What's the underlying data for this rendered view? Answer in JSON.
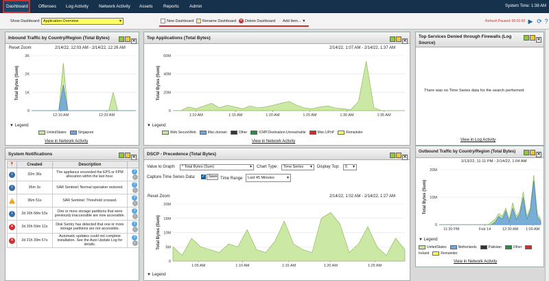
{
  "nav": {
    "tabs": [
      "Dashboard",
      "Offenses",
      "Log Activity",
      "Network Activity",
      "Assets",
      "Reports",
      "Admin"
    ],
    "system_time": "System Time: 1:38 AM"
  },
  "toolbar": {
    "show_label": "Show Dashboard:",
    "dashboard_value": "Application Overview",
    "new": "New Dashboard",
    "rename": "Rename Dashboard",
    "delete": "Delete Dashboard",
    "add": "Add Item...",
    "refresh": "Refresh Paused: 00:01:00"
  },
  "colors": {
    "green": "#c6e59b",
    "blue": "#6fa7dc",
    "red": "#d32a2a",
    "nav": "#15314b",
    "yellow": "#ffff66"
  },
  "p_inbound": {
    "title": "Inbound Traffic by Country/Region (Total Bytes)",
    "reset": "Reset Zoom",
    "range": "2/14/22, 12:03 AM - 2/14/22, 12:26 AM",
    "ylabel": "Total Bytes (Sum)",
    "legend_label": "Legend",
    "link": "View in Network Activity"
  },
  "p_topapps": {
    "title": "Top Applications (Total Bytes)",
    "range": "2/14/22, 1:07 AM - 2/14/22, 1:37 AM",
    "ylabel": "Total Bytes (Sum)",
    "legend_label": "Legend",
    "link": "View in Network Activity"
  },
  "p_denied": {
    "title": "Top Services Denied through Firewalls (Log Source)",
    "message": "There was no Time Series data for the search performed",
    "link": "View in Log Activity"
  },
  "p_notif": {
    "title": "System Notifications",
    "cols": [
      "Created",
      "Description"
    ],
    "rows": [
      {
        "icon": "info",
        "created": "32m 36s",
        "desc": "The appliance exceeded the EPS or FPM allocation within the last hour."
      },
      {
        "icon": "info",
        "created": "36m 3s",
        "desc": "SAR Sentinel: Normal operation restored."
      },
      {
        "icon": "warn",
        "created": "36m 51s",
        "desc": "SAR Sentinel: Threshold crossed."
      },
      {
        "icon": "info",
        "created": "2d 20h 58m 53s",
        "desc": "One or more storage partitions that were previously inaccessible are now accessible."
      },
      {
        "icon": "error",
        "created": "2d 20h 59m 12s",
        "desc": "Disk Sentry has detected that one or more storage partitions are not accessible."
      },
      {
        "icon": "error",
        "created": "2d 21h 39m 57s",
        "desc": "Automatic updates could not complete installation. See the Auto Update Log for details."
      }
    ]
  },
  "p_dscp": {
    "title": "DSCP - Precedence (Total Bytes)",
    "value_label": "Value to Graph:",
    "value": "* Total Bytes (Sum)",
    "ctype_label": "Chart Type:",
    "ctype": "Time Series",
    "top_label": "Display Top:",
    "top": "5",
    "capture_label": "Capture Time Series Data:",
    "save": "Save",
    "trange_label": "Time Range",
    "trange": "Last 45 Minutes",
    "reset": "Reset Zoom",
    "range": "2/14/22, 1:02 AM - 2/14/22, 1:27 AM",
    "ylabel": "Total Bytes (Sum)",
    "legend_label": "Legend"
  },
  "p_outbound": {
    "title": "Outbound Traffic by Country/Region (Total Bytes)",
    "range": "2/13/22, 11:11 PM - 2/14/22, 1:04 AM",
    "ylabel": "Total Bytes (Sum)",
    "legend_label": "Legend",
    "link": "View in Network Activity"
  },
  "chart_data": [
    {
      "type": "area",
      "title": "Inbound Traffic by Country/Region (Total Bytes)",
      "ylabel": "Total Bytes (Sum)",
      "ylim": [
        0,
        3
      ],
      "yticks": [
        "0",
        "1K",
        "2K",
        "3K"
      ],
      "xticks": [
        "12:10 AM",
        "12:20 AM"
      ],
      "x": [
        0,
        1,
        2,
        3,
        4,
        5,
        6,
        7,
        8,
        9,
        10,
        11,
        12,
        13,
        14,
        15,
        16,
        17,
        18,
        19,
        20,
        21,
        22,
        23
      ],
      "series": [
        {
          "name": "UnitedStates",
          "color": "#c6e59b",
          "values": [
            0,
            0,
            0,
            0,
            0,
            0,
            0,
            2.6,
            0,
            0,
            0,
            0,
            0,
            0,
            0,
            0,
            0,
            0,
            1.0,
            0,
            0,
            0,
            0,
            0
          ]
        },
        {
          "name": "Singapore",
          "color": "#6fa7dc",
          "values": [
            0,
            0,
            0,
            0,
            0,
            0,
            0,
            1.4,
            0,
            0,
            0,
            0,
            0,
            0,
            0,
            0,
            0,
            0,
            0,
            0,
            0,
            0,
            0,
            0
          ]
        }
      ]
    },
    {
      "type": "area",
      "title": "Top Applications (Total Bytes)",
      "ylabel": "Total Bytes (Sum)",
      "ylim": [
        0,
        60
      ],
      "yticks": [
        "0",
        "20M",
        "40M",
        "60M"
      ],
      "xticks": [
        "1:10 AM",
        "1:15 AM",
        "1:20 AM",
        "1:25 AM",
        "1:30 AM",
        "1:35 AM"
      ],
      "x": [
        0,
        1,
        2,
        3,
        4,
        5,
        6,
        7,
        8,
        9,
        10,
        11,
        12,
        13,
        14,
        15,
        16,
        17,
        18,
        19,
        20,
        21,
        22,
        23,
        24,
        25,
        26,
        27,
        28,
        29,
        30
      ],
      "series": [
        {
          "name": "Web.SecureWeb",
          "color": "#c6e59b",
          "values": [
            0,
            0,
            4,
            2,
            5,
            8,
            3,
            6,
            4,
            2,
            5,
            3,
            4,
            6,
            8,
            10,
            6,
            3,
            2,
            4,
            5,
            3,
            2,
            1,
            10,
            54,
            3,
            0,
            0,
            0,
            0
          ]
        },
        {
          "name": "Misc.domain",
          "color": "#6fa7dc",
          "values": [
            0,
            0,
            0,
            0,
            0,
            0,
            0,
            0,
            0,
            0,
            0,
            0,
            0,
            0,
            0,
            0,
            0,
            0,
            0,
            0,
            0,
            0,
            0,
            0,
            0,
            0,
            0,
            0,
            0,
            0,
            0
          ]
        },
        {
          "name": "Other",
          "color": "#333333",
          "values": [
            0,
            0,
            0,
            0,
            0,
            0,
            0,
            0,
            0,
            0,
            0,
            0,
            0,
            0,
            0,
            0,
            0,
            0,
            0,
            0,
            0,
            0,
            0,
            0,
            0,
            0,
            0,
            0,
            0,
            0,
            0
          ]
        },
        {
          "name": "ICMP.Destination-Unreachable",
          "color": "#2a8a4a",
          "values": [
            0,
            0,
            0,
            0,
            0,
            0,
            0,
            0,
            0,
            0,
            0,
            0,
            0,
            0,
            0,
            0,
            0,
            0,
            0,
            0,
            0,
            0,
            0,
            0,
            0,
            0,
            0,
            0,
            0,
            0,
            0
          ]
        },
        {
          "name": "Misc.UPnP",
          "color": "#d32a2a",
          "values": [
            0,
            0,
            0,
            0,
            0,
            0,
            0,
            0,
            0,
            0,
            0,
            0,
            0,
            0,
            0,
            0,
            0,
            0,
            0,
            0,
            0,
            0,
            0,
            0,
            0,
            0,
            0,
            0,
            0,
            0,
            0
          ]
        },
        {
          "name": "Remainder",
          "color": "#ffff66",
          "values": [
            0,
            0,
            0,
            0,
            0,
            0,
            0,
            0,
            0,
            0,
            0,
            0,
            0,
            0,
            0,
            0,
            0,
            0,
            0,
            0,
            0,
            0,
            0,
            0,
            0,
            0,
            0,
            0,
            0,
            0,
            0
          ]
        }
      ]
    },
    {
      "type": "area",
      "title": "DSCP - Precedence (Total Bytes)",
      "ylabel": "Total Bytes (Sum)",
      "ylim": [
        0,
        20
      ],
      "yticks": [
        "0",
        "5M",
        "10M",
        "15M",
        "20M"
      ],
      "xticks": [
        "1:05 AM",
        "1:10 AM",
        "1:15 AM",
        "1:20 AM",
        "1:25 AM"
      ],
      "x": [
        0,
        1,
        2,
        3,
        4,
        5,
        6,
        7,
        8,
        9,
        10,
        11,
        12,
        13,
        14,
        15,
        16,
        17,
        18,
        19,
        20,
        21,
        22,
        23,
        24,
        25
      ],
      "series": [
        {
          "name": "",
          "color": "#c6e59b",
          "values": [
            5,
            2,
            8,
            5,
            4,
            3,
            6,
            5,
            11,
            4,
            3,
            7,
            14,
            6,
            4,
            3,
            15,
            17,
            13,
            3,
            6,
            12,
            5,
            2,
            8,
            4
          ]
        }
      ]
    },
    {
      "type": "area",
      "title": "Outbound Traffic by Country/Region (Total Bytes)",
      "ylabel": "Total Bytes (Sum)",
      "ylim": [
        0,
        20
      ],
      "yticks": [
        "0",
        "10M",
        "20M"
      ],
      "xticks": [
        "11:30 PM",
        "Feb 14",
        "12:30 AM",
        "1:00 AM"
      ],
      "x": [
        0,
        1,
        2,
        3,
        4,
        5,
        6,
        7,
        8,
        9,
        10,
        11,
        12,
        13,
        14,
        15,
        16,
        17,
        18,
        19,
        20,
        21,
        22,
        23,
        24,
        25,
        26,
        27,
        28,
        29
      ],
      "series": [
        {
          "name": "UnitedStates",
          "color": "#c6e59b",
          "values": [
            0,
            0,
            0,
            0,
            0,
            0,
            0,
            0,
            0,
            0,
            0,
            0,
            0,
            0,
            0,
            1,
            2,
            4,
            3,
            6,
            2,
            8,
            3,
            5,
            12,
            3,
            6,
            18,
            4,
            2
          ]
        },
        {
          "name": "Netherlands",
          "color": "#6fa7dc",
          "values": [
            0,
            0,
            0,
            0,
            0,
            0,
            0,
            0,
            0,
            0,
            0,
            0,
            0,
            0,
            0,
            0,
            1,
            3,
            2,
            5,
            1,
            6,
            2,
            4,
            10,
            2,
            5,
            16,
            3,
            1
          ]
        },
        {
          "name": "Pakistan",
          "color": "#333333",
          "values": [
            0,
            0,
            0,
            0,
            0,
            0,
            0,
            0,
            0,
            0,
            0,
            0,
            0,
            0,
            0,
            0,
            0,
            0,
            0,
            0,
            0,
            0,
            0,
            0,
            0,
            0,
            0,
            0,
            0,
            0
          ]
        },
        {
          "name": "Other",
          "color": "#2a8a4a",
          "values": [
            0,
            0,
            0,
            0,
            0,
            0,
            0,
            0,
            0,
            0,
            0,
            0,
            0,
            0,
            0,
            0,
            0,
            0,
            0,
            0,
            0,
            0,
            0,
            0,
            0,
            0,
            0,
            0,
            0,
            0
          ]
        },
        {
          "name": "Ireland",
          "color": "#d32a2a",
          "values": [
            0,
            0,
            0,
            0,
            0,
            0,
            0,
            0,
            0,
            0,
            0,
            0,
            0,
            0,
            0,
            0,
            0,
            0,
            0,
            0,
            0,
            0,
            0,
            0,
            0,
            0,
            0,
            0,
            0,
            0
          ]
        },
        {
          "name": "Remainder",
          "color": "#ffff66",
          "values": [
            0,
            0,
            0,
            0,
            0,
            0,
            0,
            0,
            0,
            0,
            0,
            0,
            0,
            0,
            0,
            0,
            0,
            0,
            0,
            0,
            0,
            0,
            0,
            0,
            0,
            0,
            0,
            0,
            0,
            0
          ]
        }
      ]
    }
  ]
}
